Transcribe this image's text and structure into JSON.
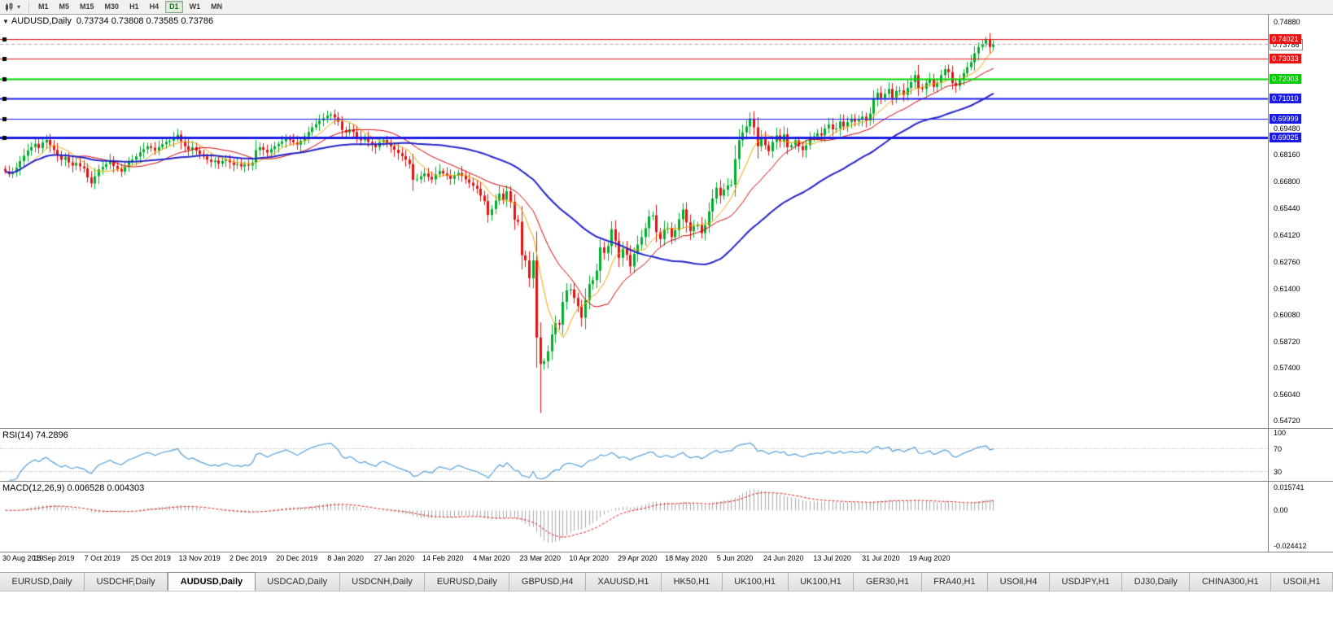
{
  "toolbar": {
    "timeframes": [
      "M1",
      "M5",
      "M15",
      "M30",
      "H1",
      "H4",
      "D1",
      "W1",
      "MN"
    ],
    "active_timeframe": "D1"
  },
  "chart": {
    "symbol_label": "AUDUSD,Daily",
    "ohlc_label": "0.73734 0.73808 0.73585 0.73786"
  },
  "price_axis": {
    "ticks": [
      {
        "price": 0.7488,
        "label": "0.74880"
      },
      {
        "price": 0.6948,
        "label": "0.69480"
      },
      {
        "price": 0.6816,
        "label": "0.68160"
      },
      {
        "price": 0.668,
        "label": "0.66800"
      },
      {
        "price": 0.6544,
        "label": "0.65440"
      },
      {
        "price": 0.6412,
        "label": "0.64120"
      },
      {
        "price": 0.6276,
        "label": "0.62760"
      },
      {
        "price": 0.614,
        "label": "0.61400"
      },
      {
        "price": 0.6008,
        "label": "0.60080"
      },
      {
        "price": 0.5872,
        "label": "0.58720"
      },
      {
        "price": 0.574,
        "label": "0.57400"
      },
      {
        "price": 0.5604,
        "label": "0.56040"
      },
      {
        "price": 0.5472,
        "label": "0.54720"
      }
    ],
    "tags": [
      {
        "price": 0.73786,
        "label": "0.73786",
        "bg": "#ffffff",
        "fg": "#000000",
        "border": "#909090"
      },
      {
        "price": 0.74021,
        "label": "0.74021",
        "bg": "#ee1111",
        "fg": "#ffffff"
      },
      {
        "price": 0.73033,
        "label": "0.73033",
        "bg": "#ee1111",
        "fg": "#ffffff"
      },
      {
        "price": 0.72003,
        "label": "0.72003",
        "bg": "#00cc00",
        "fg": "#ffffff"
      },
      {
        "price": 0.7101,
        "label": "0.71010",
        "bg": "#1a1ae6",
        "fg": "#ffffff"
      },
      {
        "price": 0.69999,
        "label": "0.69999",
        "bg": "#1a1ae6",
        "fg": "#ffffff"
      },
      {
        "price": 0.69025,
        "label": "0.69025",
        "bg": "#1a1ae6",
        "fg": "#ffffff"
      }
    ]
  },
  "rsi": {
    "label": "RSI(14) 74.2896",
    "ylim": [
      12,
      105
    ],
    "levels": [
      70,
      30
    ],
    "color": "#569fdd",
    "axis": [
      {
        "v": 100,
        "label": "100"
      },
      {
        "v": 70,
        "label": "70"
      },
      {
        "v": 30,
        "label": "30"
      }
    ]
  },
  "macd": {
    "label": "MACD(12,26,9) 0.006528 0.004303",
    "ylim": [
      -0.0284,
      0.0197
    ],
    "hist_color": "#a8a8a8",
    "signal_color": "#e02020",
    "axis": [
      {
        "v": 0.015741,
        "label": "0.015741"
      },
      {
        "v": 0,
        "label": "0.00"
      },
      {
        "v": -0.024412,
        "label": "-0.024412"
      }
    ]
  },
  "tabs": {
    "active_index": 2,
    "items": [
      "EURUSD,Daily",
      "USDCHF,Daily",
      "AUDUSD,Daily",
      "USDCAD,Daily",
      "USDCNH,Daily",
      "EURUSD,Daily",
      "GBPUSD,H4",
      "XAUUSD,H1",
      "HK50,H1",
      "UK100,H1",
      "UK100,H1",
      "GER30,H1",
      "FRA40,H1",
      "USOil,H4",
      "USDJPY,H1",
      "DJ30,Daily",
      "CHINA300,H1",
      "USOil,H1"
    ]
  },
  "chart_data": {
    "type": "candlestick",
    "symbol": "AUDUSD",
    "timeframe": "Daily",
    "title": "AUDUSD,Daily",
    "ohlc_current": {
      "open": 0.73734,
      "high": 0.73808,
      "low": 0.73585,
      "close": 0.73786
    },
    "ylim": [
      0.5434,
      0.7526
    ],
    "x_labels": [
      "30 Aug 2019",
      "18 Sep 2019",
      "7 Oct 2019",
      "25 Oct 2019",
      "13 Nov 2019",
      "2 Dec 2019",
      "20 Dec 2019",
      "8 Jan 2020",
      "27 Jan 2020",
      "14 Feb 2020",
      "4 Mar 2020",
      "23 Mar 2020",
      "10 Apr 2020",
      "29 Apr 2020",
      "18 May 2020",
      "5 Jun 2020",
      "24 Jun 2020",
      "13 Jul 2020",
      "31 Jul 2020",
      "19 Aug 2020"
    ],
    "bars_per_label": 13,
    "first_open": 0.6745,
    "closes": [
      0.6733,
      0.6718,
      0.6729,
      0.6752,
      0.6785,
      0.6812,
      0.6838,
      0.6856,
      0.6872,
      0.6851,
      0.6879,
      0.6892,
      0.6865,
      0.6841,
      0.6815,
      0.6792,
      0.6805,
      0.6778,
      0.6762,
      0.6775,
      0.6758,
      0.6748,
      0.6702,
      0.6672,
      0.6708,
      0.6742,
      0.6755,
      0.677,
      0.6788,
      0.676,
      0.6745,
      0.6732,
      0.6755,
      0.678,
      0.6792,
      0.6808,
      0.683,
      0.6845,
      0.686,
      0.6852,
      0.6838,
      0.6856,
      0.687,
      0.6882,
      0.6888,
      0.6902,
      0.6918,
      0.6885,
      0.686,
      0.6842,
      0.6855,
      0.6838,
      0.682,
      0.6808,
      0.6792,
      0.678,
      0.6788,
      0.6772,
      0.6785,
      0.6792,
      0.6778,
      0.6765,
      0.677,
      0.6758,
      0.6768,
      0.6762,
      0.6778,
      0.684,
      0.6855,
      0.6842,
      0.6828,
      0.6845,
      0.686,
      0.6872,
      0.6885,
      0.69,
      0.6892,
      0.688,
      0.6868,
      0.6888,
      0.691,
      0.6932,
      0.6955,
      0.6972,
      0.699,
      0.7002,
      0.7015,
      0.7021,
      0.7005,
      0.6985,
      0.6942,
      0.693,
      0.6945,
      0.6932,
      0.6905,
      0.689,
      0.6902,
      0.6882,
      0.6868,
      0.6855,
      0.688,
      0.6892,
      0.6875,
      0.686,
      0.6842,
      0.6825,
      0.681,
      0.6792,
      0.677,
      0.669,
      0.6692,
      0.6708,
      0.6722,
      0.6705,
      0.6692,
      0.6718,
      0.6735,
      0.6722,
      0.671,
      0.6695,
      0.6712,
      0.6725,
      0.671,
      0.6692,
      0.6675,
      0.666,
      0.6645,
      0.661,
      0.6582,
      0.6512,
      0.6542,
      0.6585,
      0.662,
      0.659,
      0.6632,
      0.6578,
      0.6488,
      0.6478,
      0.6308,
      0.6282,
      0.6192,
      0.6282,
      0.5892,
      0.5758,
      0.5772,
      0.5822,
      0.5908,
      0.5965,
      0.5958,
      0.6072,
      0.613,
      0.6135,
      0.6092,
      0.605,
      0.5992,
      0.608,
      0.6162,
      0.6182,
      0.623,
      0.6348,
      0.632,
      0.6355,
      0.644,
      0.6382,
      0.6295,
      0.6342,
      0.631,
      0.6252,
      0.6315,
      0.6362,
      0.64,
      0.6445,
      0.6505,
      0.651,
      0.6425,
      0.639,
      0.644,
      0.6445,
      0.64,
      0.6435,
      0.649,
      0.654,
      0.6475,
      0.643,
      0.6455,
      0.6462,
      0.642,
      0.646,
      0.653,
      0.6595,
      0.665,
      0.661,
      0.664,
      0.6662,
      0.6665,
      0.6795,
      0.689,
      0.693,
      0.696,
      0.7,
      0.6955,
      0.686,
      0.69,
      0.6865,
      0.6835,
      0.6882,
      0.6915,
      0.6885,
      0.692,
      0.6855,
      0.6865,
      0.689,
      0.686,
      0.684,
      0.6865,
      0.69,
      0.691,
      0.6925,
      0.6915,
      0.695,
      0.697,
      0.6945,
      0.695,
      0.6985,
      0.696,
      0.6982,
      0.7,
      0.6985,
      0.6995,
      0.701,
      0.699,
      0.7025,
      0.71,
      0.713,
      0.7105,
      0.7125,
      0.715,
      0.7105,
      0.714,
      0.7142,
      0.712,
      0.7155,
      0.7185,
      0.722,
      0.7155,
      0.715,
      0.718,
      0.72,
      0.716,
      0.7182,
      0.722,
      0.725,
      0.7235,
      0.718,
      0.7165,
      0.7195,
      0.723,
      0.726,
      0.7285,
      0.733,
      0.7362,
      0.7378,
      0.7402,
      0.7362,
      0.7379
    ],
    "low_overrides": {
      "143": 0.551
    },
    "high_overrides": {
      "262": 0.7415
    },
    "candle_colors": {
      "up": "#00ad2b",
      "down": "#e31212"
    },
    "moving_averages": [
      {
        "period": 8,
        "color": "#f0a400",
        "width": 1
      },
      {
        "period": 20,
        "color": "#d40000",
        "width": 1
      },
      {
        "period": 50,
        "color": "#2323cc",
        "width": 2
      }
    ],
    "hlines": [
      {
        "price": 0.74021,
        "color": "#ee1111",
        "width": 1
      },
      {
        "price": 0.73033,
        "color": "#ee1111",
        "width": 1
      },
      {
        "price": 0.72003,
        "color": "#00d400",
        "width": 2
      },
      {
        "price": 0.7101,
        "color": "#1a1ae6",
        "width": 2
      },
      {
        "price": 0.69999,
        "color": "#1a1ae6",
        "width": 1
      },
      {
        "price": 0.69025,
        "color": "#1a1ae6",
        "width": 3
      }
    ],
    "current_price": 0.73786
  }
}
